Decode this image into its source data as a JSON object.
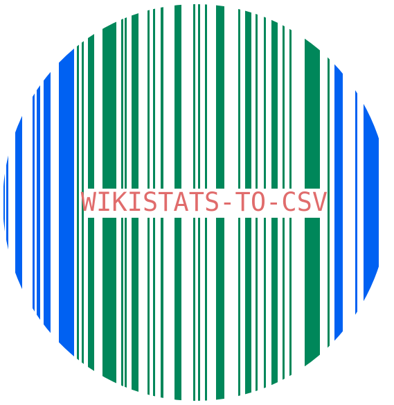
{
  "logo": {
    "title": "WIKISTATS-TO-CSV",
    "colors": {
      "background": "#ffffff",
      "green_stripe": "#00875a",
      "blue_stripe": "#0061f2",
      "title_text": "#e06c6c",
      "label_bg": "#ffffff"
    }
  }
}
